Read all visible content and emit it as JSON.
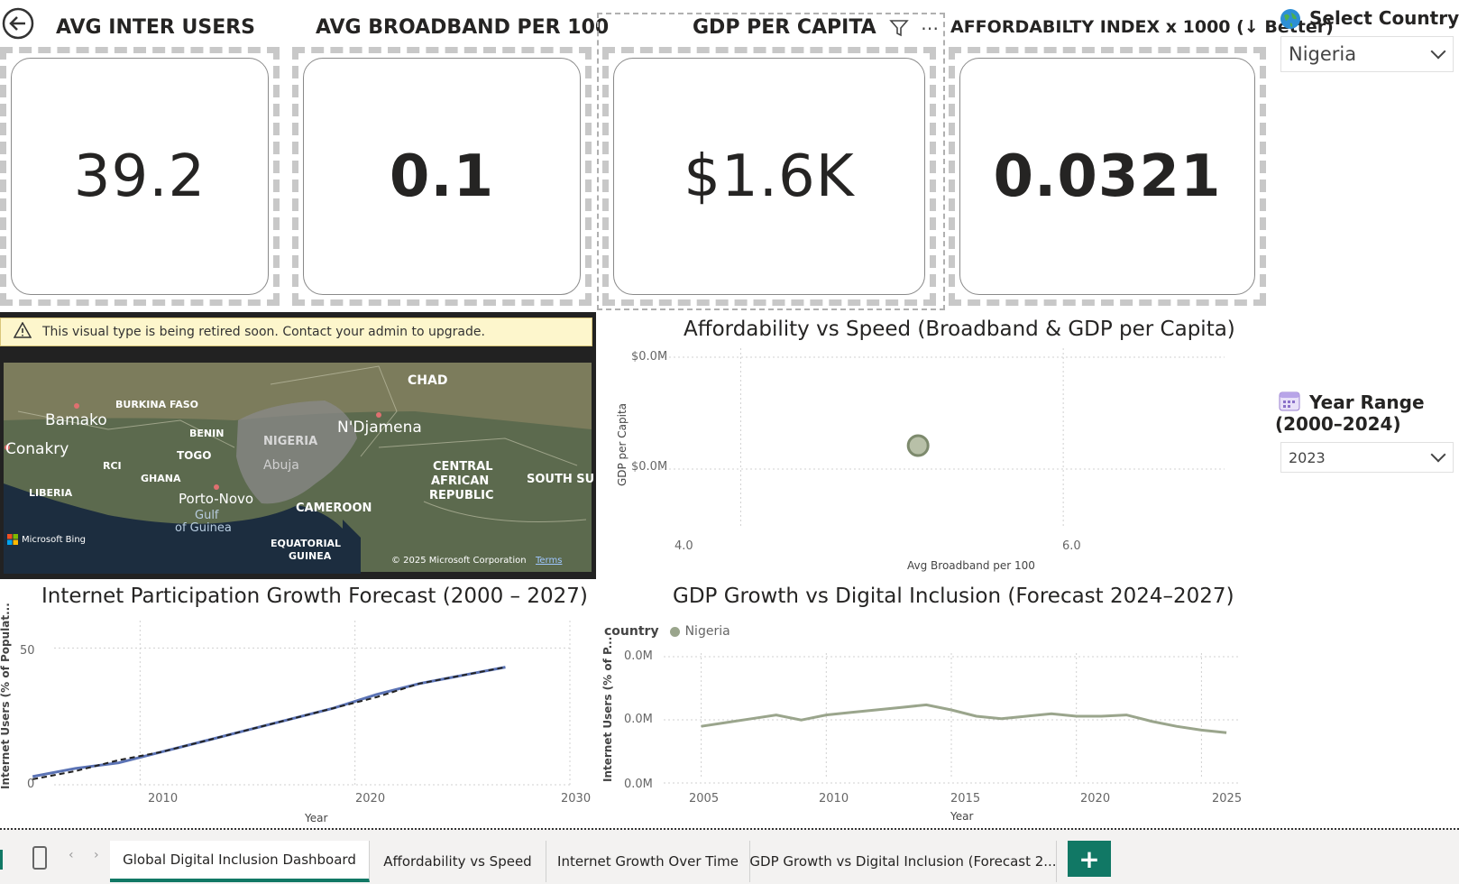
{
  "kpis": [
    {
      "title": "AVG INTER USERS",
      "value": "39.2"
    },
    {
      "title": "AVG BROADBAND PER 100",
      "value": "0.1"
    },
    {
      "title": "GDP PER CAPITA",
      "value": "$1.6K"
    },
    {
      "title": "AFFORDABILTY INDEX x 1000 (↓ Better)",
      "value": "0.0321"
    }
  ],
  "slicers": {
    "country": {
      "title": "Select Country",
      "value": "Nigeria",
      "icon": "globe-icon"
    },
    "year": {
      "title_line1": "Year Range",
      "title_line2": "(2000–2024)",
      "value": "2023",
      "icon": "calendar-icon"
    }
  },
  "map": {
    "warning": "This visual type is being retired soon. Contact your admin to upgrade.",
    "labels": [
      "CHAD",
      "BURKINA FASO",
      "Bamako",
      "NIGERIA",
      "N'Djamena",
      "BENIN",
      "Conakry",
      "TOGO",
      "Abuja",
      "RCI",
      "GHANA",
      "CENTRAL",
      "AFRICAN",
      "REPUBLIC",
      "SOUTH SU",
      "LIBERIA",
      "Porto-Novo",
      "Gulf",
      "of Guinea",
      "CAMEROON",
      "EQUATORIAL",
      "GUINEA"
    ],
    "attribution": "Microsoft Bing",
    "copyright": "© 2025 Microsoft Corporation",
    "terms": "Terms"
  },
  "scatter": {
    "title": "Affordability vs Speed (Broadband & GDP per Capita)",
    "y_ticks": [
      "$0.0M",
      "$0.0M"
    ],
    "x_ticks": [
      "4.0",
      "6.0"
    ],
    "xlabel": "Avg Broadband per 100",
    "ylabel": "GDP per Capita"
  },
  "line_chart": {
    "title": "Internet Participation Growth Forecast (2000 – 2027)",
    "y_ticks": [
      "50",
      "0"
    ],
    "x_ticks": [
      "2010",
      "2020",
      "2030"
    ],
    "xlabel": "Year",
    "ylabel": "Internet Users (% of Populat..."
  },
  "gdp_chart": {
    "title": "GDP Growth vs Digital Inclusion (Forecast 2024–2027)",
    "legend_title": "country",
    "legend_item": "Nigeria",
    "y_ticks": [
      "0.0M",
      "0.0M",
      "0.0M"
    ],
    "x_ticks": [
      "2005",
      "2010",
      "2015",
      "2020",
      "2025"
    ],
    "xlabel": "Year",
    "ylabel": "Internet Users (% of P..."
  },
  "tabs": [
    {
      "label": "Global Digital Inclusion Dashboard",
      "active": true
    },
    {
      "label": "Affordability vs Speed",
      "active": false
    },
    {
      "label": "Internet Growth Over Time",
      "active": false
    },
    {
      "label": "GDP Growth vs Digital Inclusion (Forecast 2...",
      "active": false
    }
  ],
  "add_tab_label": "+",
  "colors": {
    "accent": "#117865",
    "series_gray_green": "#9aa58c",
    "line_blue": "#5b73b5",
    "forecast_dash": "#222222"
  },
  "chart_data": [
    {
      "type": "scatter",
      "title": "Affordability vs Speed (Broadband & GDP per Capita)",
      "xlabel": "Avg Broadband per 100",
      "ylabel": "GDP per Capita",
      "x_range": [
        3.5,
        7.0
      ],
      "points": [
        {
          "x": 5.1,
          "y": 0.0
        }
      ]
    },
    {
      "type": "line",
      "title": "Internet Participation Growth Forecast (2000 – 2027)",
      "xlabel": "Year",
      "ylabel": "Internet Users (% of Populat...",
      "xlim": [
        2006,
        2030
      ],
      "ylim": [
        0,
        60
      ],
      "series": [
        {
          "values": [
            {
              "x": 2005,
              "y": 3
            },
            {
              "x": 2007,
              "y": 6
            },
            {
              "x": 2009,
              "y": 8
            },
            {
              "x": 2011,
              "y": 12
            },
            {
              "x": 2013,
              "y": 16
            },
            {
              "x": 2015,
              "y": 20
            },
            {
              "x": 2017,
              "y": 24
            },
            {
              "x": 2019,
              "y": 28
            },
            {
              "x": 2021,
              "y": 33
            },
            {
              "x": 2023,
              "y": 37
            },
            {
              "x": 2025,
              "y": 40
            },
            {
              "x": 2027,
              "y": 43
            }
          ]
        },
        {
          "values": [
            {
              "x": 2005,
              "y": 2
            },
            {
              "x": 2007,
              "y": 5
            },
            {
              "x": 2009,
              "y": 9
            },
            {
              "x": 2011,
              "y": 12
            },
            {
              "x": 2013,
              "y": 16
            },
            {
              "x": 2015,
              "y": 20
            },
            {
              "x": 2017,
              "y": 24
            },
            {
              "x": 2019,
              "y": 28
            },
            {
              "x": 2021,
              "y": 32
            },
            {
              "x": 2023,
              "y": 37
            },
            {
              "x": 2025,
              "y": 40
            },
            {
              "x": 2027,
              "y": 43
            }
          ]
        }
      ]
    },
    {
      "type": "line",
      "title": "GDP Growth vs Digital Inclusion (Forecast 2024–2027)",
      "xlabel": "Year",
      "ylabel": "Internet Users (% of P...",
      "xlim": [
        2003.5,
        2026.5
      ],
      "series": [
        {
          "name": "Nigeria",
          "values": [
            {
              "x": 2005,
              "y": 0.42
            },
            {
              "x": 2006,
              "y": 0.45
            },
            {
              "x": 2007,
              "y": 0.48
            },
            {
              "x": 2008,
              "y": 0.51
            },
            {
              "x": 2009,
              "y": 0.47
            },
            {
              "x": 2010,
              "y": 0.51
            },
            {
              "x": 2011,
              "y": 0.53
            },
            {
              "x": 2012,
              "y": 0.55
            },
            {
              "x": 2013,
              "y": 0.57
            },
            {
              "x": 2014,
              "y": 0.59
            },
            {
              "x": 2015,
              "y": 0.55
            },
            {
              "x": 2016,
              "y": 0.5
            },
            {
              "x": 2017,
              "y": 0.48
            },
            {
              "x": 2018,
              "y": 0.5
            },
            {
              "x": 2019,
              "y": 0.52
            },
            {
              "x": 2020,
              "y": 0.5
            },
            {
              "x": 2021,
              "y": 0.5
            },
            {
              "x": 2022,
              "y": 0.51
            },
            {
              "x": 2023,
              "y": 0.46
            },
            {
              "x": 2024,
              "y": 0.42
            },
            {
              "x": 2025,
              "y": 0.39
            },
            {
              "x": 2026,
              "y": 0.37
            }
          ]
        }
      ]
    }
  ]
}
